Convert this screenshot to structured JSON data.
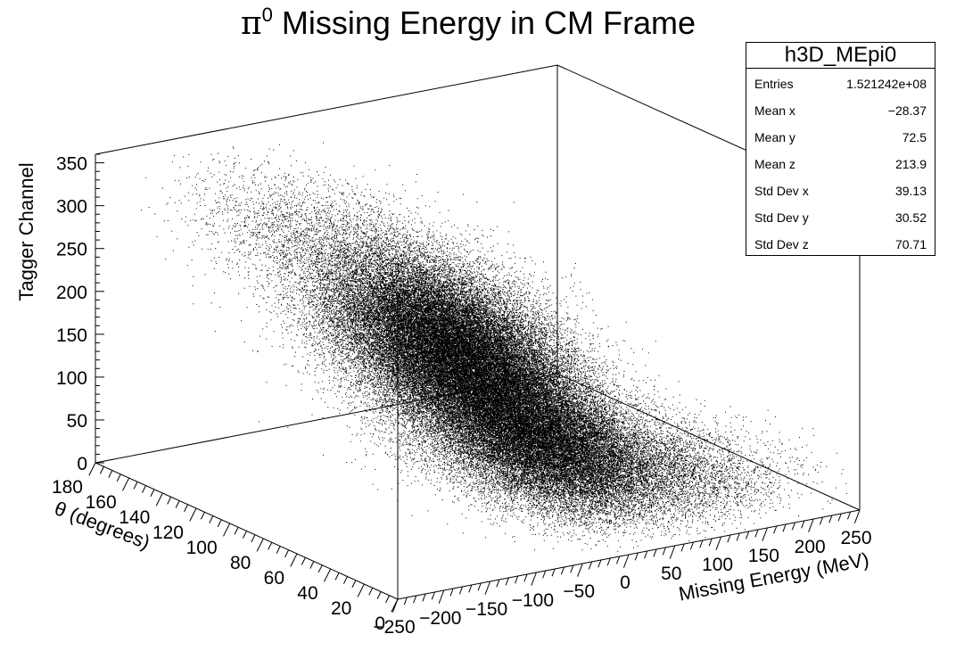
{
  "chart_data": {
    "type": "scatter",
    "title_symbol": "π",
    "title_superscript": "0",
    "title_text": " Missing Energy in CM Frame",
    "xlabel": "Missing Energy (MeV)",
    "ylabel": "θ (degrees)",
    "zlabel": "Tagger Channel",
    "xlim": [
      -250,
      250
    ],
    "ylim": [
      0,
      180
    ],
    "zlim": [
      0,
      360
    ],
    "x_ticks": [
      "−250",
      "−200",
      "−150",
      "−100",
      "−50",
      "0",
      "50",
      "100",
      "150",
      "200",
      "250"
    ],
    "y_ticks": [
      "0",
      "20",
      "40",
      "60",
      "80",
      "100",
      "120",
      "140",
      "160",
      "180"
    ],
    "z_ticks": [
      "0",
      "50",
      "100",
      "150",
      "200",
      "250",
      "300",
      "350"
    ],
    "clusters": [
      {
        "x": -85,
        "y": 72,
        "z": 215,
        "sx": 28,
        "sy": 30,
        "sz": 40,
        "n": 26000
      },
      {
        "x": -45,
        "y": 60,
        "z": 150,
        "sx": 30,
        "sy": 30,
        "sz": 45,
        "n": 26000
      },
      {
        "x": -10,
        "y": 45,
        "z": 95,
        "sx": 28,
        "sy": 28,
        "sz": 35,
        "n": 16000
      },
      {
        "x": 35,
        "y": 40,
        "z": 65,
        "sx": 40,
        "sy": 28,
        "sz": 30,
        "n": 7000
      },
      {
        "x": 110,
        "y": 35,
        "z": 30,
        "sx": 55,
        "sy": 25,
        "sz": 25,
        "n": 4500
      },
      {
        "x": -135,
        "y": 110,
        "z": 300,
        "sx": 40,
        "sy": 35,
        "sz": 30,
        "n": 2800
      }
    ],
    "grid": false,
    "marker_color": "#000000"
  },
  "stats": {
    "title": "h3D_MEpi0",
    "rows": [
      {
        "label": "Entries",
        "value": "1.521242e+08"
      },
      {
        "label": "Mean x",
        "value": "−28.37"
      },
      {
        "label": "Mean y",
        "value": "72.5"
      },
      {
        "label": "Mean z",
        "value": "213.9"
      },
      {
        "label": "Std Dev x",
        "value": "39.13"
      },
      {
        "label": "Std Dev y",
        "value": "30.52"
      },
      {
        "label": "Std Dev z",
        "value": "70.71"
      }
    ]
  }
}
